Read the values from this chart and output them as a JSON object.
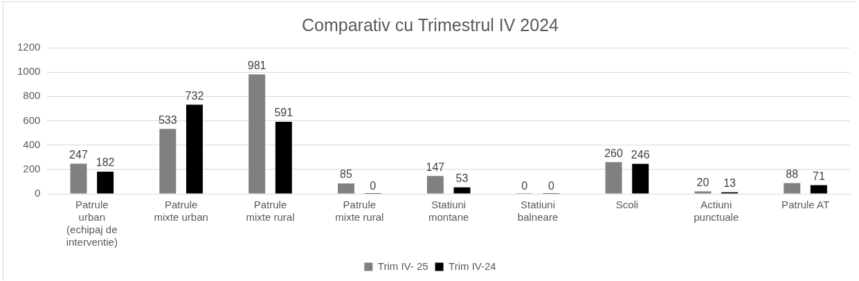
{
  "chart_data": {
    "type": "bar",
    "title": "Comparativ cu Trimestrul IV 2024",
    "categories": [
      "Patrule\nurban\n(echipaj de\ninterventie)",
      "Patrule\nmixte urban",
      "Patrule\nmixte rural",
      "Patrule\nmixte rural",
      "Statiuni\nmontane",
      "Statiuni\nbalneare",
      "Scoli",
      "Actiuni\npunctuale",
      "Patrule AT"
    ],
    "series": [
      {
        "name": "Trim IV- 25",
        "color": "#808080",
        "values": [
          247,
          533,
          981,
          85,
          147,
          0,
          260,
          20,
          88
        ]
      },
      {
        "name": "Trim IV-24",
        "color": "#000000",
        "values": [
          182,
          732,
          591,
          0,
          53,
          0,
          246,
          13,
          71
        ]
      }
    ],
    "ylim": [
      0,
      1200
    ],
    "yticks": [
      0,
      200,
      400,
      600,
      800,
      1000,
      1200
    ],
    "grid": "y",
    "legend": "bottom",
    "data_labels": true
  }
}
